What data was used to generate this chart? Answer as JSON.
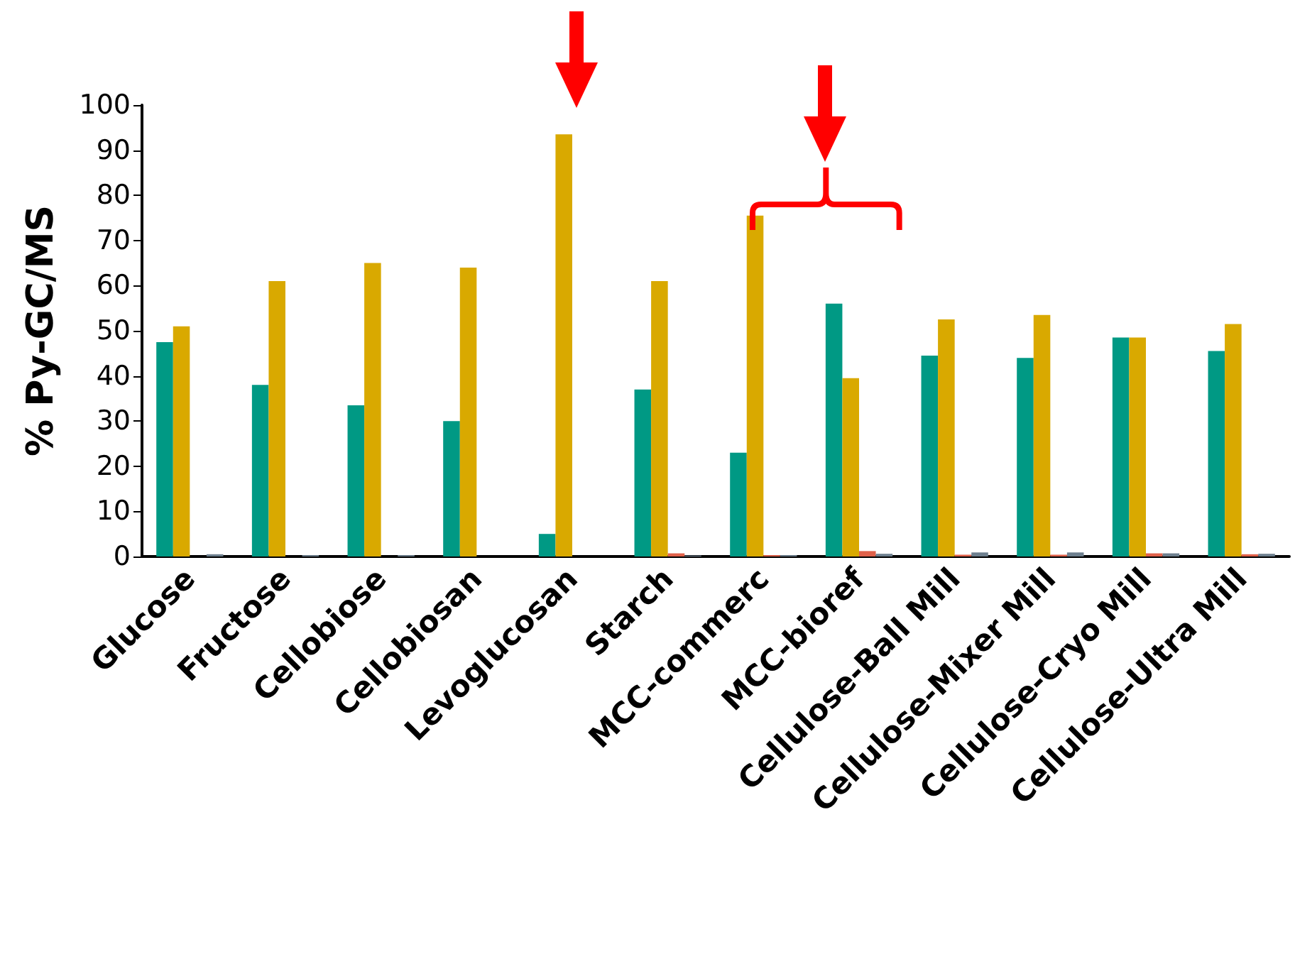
{
  "chart_data": {
    "type": "bar",
    "ylabel": "% Py-GC/MS",
    "categories": [
      "Glucose",
      "Fructose",
      "Cellobiose",
      "Cellobiosan",
      "Levoglucosan",
      "Starch",
      "MCC-commerc",
      "MCC-bioref",
      "Cellulose-Ball Mill",
      "Cellulose-Mixer Mill",
      "Cellulose-Cryo Mill",
      "Cellulose-Ultra Mill"
    ],
    "series": [
      {
        "color": "#009984",
        "values": [
          47.5,
          38,
          33.5,
          30,
          5,
          37,
          23,
          56,
          44.5,
          44,
          48.5,
          45.5
        ]
      },
      {
        "color": "#d9a900",
        "values": [
          51,
          61,
          65,
          64,
          93.5,
          61,
          75.5,
          39.5,
          52.5,
          53.5,
          48.5,
          51.5
        ]
      },
      {
        "color": "#e0614a",
        "values": [
          0,
          0,
          0,
          0,
          0,
          0.7,
          0.3,
          1.2,
          0.4,
          0.4,
          0.7,
          0.5
        ]
      },
      {
        "color": "#6d7f8e",
        "values": [
          0.5,
          0.3,
          0.3,
          0,
          0,
          0.2,
          0.3,
          0.6,
          0.9,
          0.9,
          0.7,
          0.6
        ]
      }
    ],
    "ylim": [
      0,
      100
    ],
    "yticks": [
      0,
      10,
      20,
      30,
      40,
      50,
      60,
      70,
      80,
      90,
      100
    ],
    "grid": false
  }
}
